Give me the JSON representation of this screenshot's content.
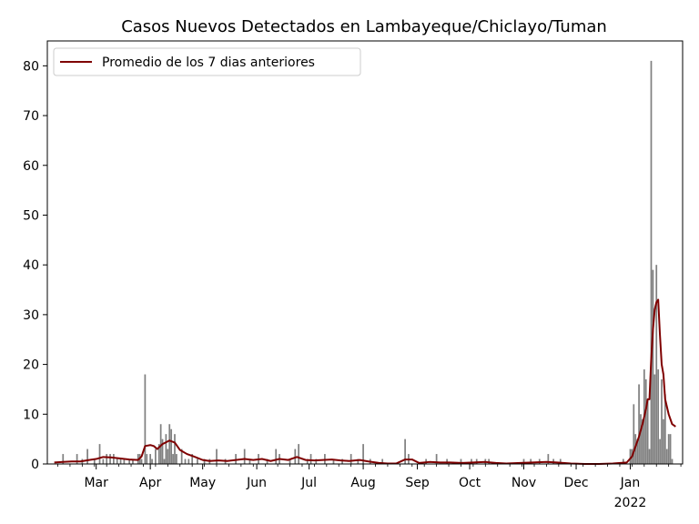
{
  "chart_data": {
    "type": "bar",
    "title": "Casos Nuevos Detectados en Lambayeque/Chiclayo/Tuman",
    "xlabel": "",
    "ylabel": "",
    "x_range": [
      "2021-02-01",
      "2022-01-31"
    ],
    "ylim": [
      0,
      85
    ],
    "grid": false,
    "legend_position": "top-left",
    "y_ticks": [
      0,
      10,
      20,
      30,
      40,
      50,
      60,
      70,
      80
    ],
    "x_ticks": [
      {
        "date": "2021-03-01",
        "label": "Mar"
      },
      {
        "date": "2021-04-01",
        "label": "Apr"
      },
      {
        "date": "2021-05-01",
        "label": "May"
      },
      {
        "date": "2021-06-01",
        "label": "Jun"
      },
      {
        "date": "2021-07-01",
        "label": "Jul"
      },
      {
        "date": "2021-08-01",
        "label": "Aug"
      },
      {
        "date": "2021-09-01",
        "label": "Sep"
      },
      {
        "date": "2021-10-01",
        "label": "Oct"
      },
      {
        "date": "2021-11-01",
        "label": "Nov"
      },
      {
        "date": "2021-12-01",
        "label": "Dec"
      },
      {
        "date": "2022-01-01",
        "label": "Jan",
        "sublabel": "2022"
      }
    ],
    "colors": {
      "bars": "#808080",
      "line": "#7f0000"
    },
    "series": [
      {
        "type": "bar",
        "values": [
          [
            "2021-02-10",
            2
          ],
          [
            "2021-02-18",
            2
          ],
          [
            "2021-02-21",
            1
          ],
          [
            "2021-02-24",
            3
          ],
          [
            "2021-02-28",
            1
          ],
          [
            "2021-03-03",
            4
          ],
          [
            "2021-03-05",
            1
          ],
          [
            "2021-03-07",
            2
          ],
          [
            "2021-03-09",
            2
          ],
          [
            "2021-03-11",
            2
          ],
          [
            "2021-03-13",
            1
          ],
          [
            "2021-03-15",
            1
          ],
          [
            "2021-03-17",
            1
          ],
          [
            "2021-03-20",
            1
          ],
          [
            "2021-03-22",
            1
          ],
          [
            "2021-03-25",
            2
          ],
          [
            "2021-03-26",
            2
          ],
          [
            "2021-03-27",
            1
          ],
          [
            "2021-03-29",
            18
          ],
          [
            "2021-03-30",
            2
          ],
          [
            "2021-04-01",
            2
          ],
          [
            "2021-04-02",
            1
          ],
          [
            "2021-04-04",
            3
          ],
          [
            "2021-04-06",
            4
          ],
          [
            "2021-04-07",
            8
          ],
          [
            "2021-04-08",
            5
          ],
          [
            "2021-04-09",
            1
          ],
          [
            "2021-04-10",
            6
          ],
          [
            "2021-04-11",
            3
          ],
          [
            "2021-04-12",
            8
          ],
          [
            "2021-04-13",
            7
          ],
          [
            "2021-04-14",
            2
          ],
          [
            "2021-04-15",
            6
          ],
          [
            "2021-04-16",
            2
          ],
          [
            "2021-04-19",
            3
          ],
          [
            "2021-04-21",
            1
          ],
          [
            "2021-04-23",
            1
          ],
          [
            "2021-04-25",
            2
          ],
          [
            "2021-04-28",
            1
          ],
          [
            "2021-05-02",
            1
          ],
          [
            "2021-05-05",
            1
          ],
          [
            "2021-05-09",
            3
          ],
          [
            "2021-05-14",
            1
          ],
          [
            "2021-05-20",
            2
          ],
          [
            "2021-05-25",
            3
          ],
          [
            "2021-05-28",
            1
          ],
          [
            "2021-06-02",
            2
          ],
          [
            "2021-06-07",
            1
          ],
          [
            "2021-06-12",
            3
          ],
          [
            "2021-06-14",
            2
          ],
          [
            "2021-06-20",
            1
          ],
          [
            "2021-06-23",
            3
          ],
          [
            "2021-06-25",
            4
          ],
          [
            "2021-06-30",
            1
          ],
          [
            "2021-07-02",
            2
          ],
          [
            "2021-07-05",
            1
          ],
          [
            "2021-07-10",
            2
          ],
          [
            "2021-07-15",
            1
          ],
          [
            "2021-07-20",
            1
          ],
          [
            "2021-07-25",
            2
          ],
          [
            "2021-07-29",
            1
          ],
          [
            "2021-08-01",
            4
          ],
          [
            "2021-08-05",
            1
          ],
          [
            "2021-08-12",
            1
          ],
          [
            "2021-08-25",
            5
          ],
          [
            "2021-08-27",
            2
          ],
          [
            "2021-09-06",
            1
          ],
          [
            "2021-09-12",
            2
          ],
          [
            "2021-09-18",
            1
          ],
          [
            "2021-09-26",
            1
          ],
          [
            "2021-10-02",
            1
          ],
          [
            "2021-10-05",
            1
          ],
          [
            "2021-10-10",
            1
          ],
          [
            "2021-10-12",
            1
          ],
          [
            "2021-11-01",
            1
          ],
          [
            "2021-11-05",
            1
          ],
          [
            "2021-11-10",
            1
          ],
          [
            "2021-11-15",
            2
          ],
          [
            "2021-11-18",
            1
          ],
          [
            "2021-11-22",
            1
          ],
          [
            "2021-12-28",
            1
          ],
          [
            "2022-01-01",
            3
          ],
          [
            "2022-01-02",
            3
          ],
          [
            "2022-01-03",
            12
          ],
          [
            "2022-01-04",
            6
          ],
          [
            "2022-01-05",
            5
          ],
          [
            "2022-01-06",
            16
          ],
          [
            "2022-01-07",
            10
          ],
          [
            "2022-01-08",
            9
          ],
          [
            "2022-01-09",
            19
          ],
          [
            "2022-01-10",
            17
          ],
          [
            "2022-01-11",
            13
          ],
          [
            "2022-01-12",
            3
          ],
          [
            "2022-01-13",
            81
          ],
          [
            "2022-01-14",
            39
          ],
          [
            "2022-01-15",
            18
          ],
          [
            "2022-01-16",
            40
          ],
          [
            "2022-01-17",
            19
          ],
          [
            "2022-01-18",
            5
          ],
          [
            "2022-01-19",
            17
          ],
          [
            "2022-01-20",
            9
          ],
          [
            "2022-01-21",
            14
          ],
          [
            "2022-01-22",
            3
          ],
          [
            "2022-01-23",
            6
          ],
          [
            "2022-01-24",
            6
          ],
          [
            "2022-01-25",
            1
          ]
        ]
      },
      {
        "type": "line",
        "name": "Promedio de los 7 dias anteriores",
        "values": [
          [
            "2021-02-05",
            0.3
          ],
          [
            "2021-02-10",
            0.4
          ],
          [
            "2021-02-15",
            0.5
          ],
          [
            "2021-02-20",
            0.5
          ],
          [
            "2021-02-25",
            0.8
          ],
          [
            "2021-03-01",
            1.0
          ],
          [
            "2021-03-05",
            1.4
          ],
          [
            "2021-03-10",
            1.3
          ],
          [
            "2021-03-15",
            1.1
          ],
          [
            "2021-03-20",
            0.9
          ],
          [
            "2021-03-25",
            0.8
          ],
          [
            "2021-03-27",
            1.5
          ],
          [
            "2021-03-29",
            3.6
          ],
          [
            "2021-04-01",
            3.8
          ],
          [
            "2021-04-03",
            3.6
          ],
          [
            "2021-04-05",
            3.0
          ],
          [
            "2021-04-08",
            4.0
          ],
          [
            "2021-04-12",
            4.7
          ],
          [
            "2021-04-15",
            4.3
          ],
          [
            "2021-04-18",
            2.8
          ],
          [
            "2021-04-22",
            2.0
          ],
          [
            "2021-04-26",
            1.5
          ],
          [
            "2021-05-01",
            0.8
          ],
          [
            "2021-05-05",
            0.6
          ],
          [
            "2021-05-10",
            0.7
          ],
          [
            "2021-05-15",
            0.6
          ],
          [
            "2021-05-20",
            0.8
          ],
          [
            "2021-05-25",
            1.0
          ],
          [
            "2021-05-30",
            0.8
          ],
          [
            "2021-06-04",
            1.0
          ],
          [
            "2021-06-09",
            0.6
          ],
          [
            "2021-06-14",
            1.0
          ],
          [
            "2021-06-19",
            0.8
          ],
          [
            "2021-06-24",
            1.4
          ],
          [
            "2021-06-29",
            0.8
          ],
          [
            "2021-07-04",
            0.7
          ],
          [
            "2021-07-09",
            0.8
          ],
          [
            "2021-07-14",
            0.9
          ],
          [
            "2021-07-19",
            0.7
          ],
          [
            "2021-07-24",
            0.6
          ],
          [
            "2021-07-30",
            0.8
          ],
          [
            "2021-08-04",
            0.5
          ],
          [
            "2021-08-10",
            0.2
          ],
          [
            "2021-08-15",
            0.1
          ],
          [
            "2021-08-20",
            0.1
          ],
          [
            "2021-08-25",
            0.9
          ],
          [
            "2021-08-29",
            0.9
          ],
          [
            "2021-09-02",
            0.2
          ],
          [
            "2021-09-08",
            0.4
          ],
          [
            "2021-09-14",
            0.3
          ],
          [
            "2021-09-20",
            0.3
          ],
          [
            "2021-09-26",
            0.2
          ],
          [
            "2021-10-03",
            0.3
          ],
          [
            "2021-10-10",
            0.4
          ],
          [
            "2021-10-16",
            0.2
          ],
          [
            "2021-10-22",
            0.1
          ],
          [
            "2021-10-30",
            0.2
          ],
          [
            "2021-11-06",
            0.3
          ],
          [
            "2021-11-14",
            0.4
          ],
          [
            "2021-11-20",
            0.3
          ],
          [
            "2021-11-28",
            0.1
          ],
          [
            "2021-12-06",
            0.0
          ],
          [
            "2021-12-14",
            0.0
          ],
          [
            "2021-12-22",
            0.1
          ],
          [
            "2021-12-30",
            0.3
          ],
          [
            "2022-01-02",
            1.5
          ],
          [
            "2022-01-04",
            3.5
          ],
          [
            "2022-01-06",
            5.5
          ],
          [
            "2022-01-08",
            8.0
          ],
          [
            "2022-01-10",
            11.0
          ],
          [
            "2022-01-11",
            13.0
          ],
          [
            "2022-01-12",
            13.0
          ],
          [
            "2022-01-13",
            21.0
          ],
          [
            "2022-01-14",
            27.0
          ],
          [
            "2022-01-15",
            31.0
          ],
          [
            "2022-01-16",
            32.5
          ],
          [
            "2022-01-17",
            33.0
          ],
          [
            "2022-01-18",
            26.0
          ],
          [
            "2022-01-19",
            20.0
          ],
          [
            "2022-01-20",
            18.0
          ],
          [
            "2022-01-21",
            13.0
          ],
          [
            "2022-01-23",
            10.0
          ],
          [
            "2022-01-25",
            8.0
          ],
          [
            "2022-01-27",
            7.5
          ]
        ]
      }
    ]
  }
}
